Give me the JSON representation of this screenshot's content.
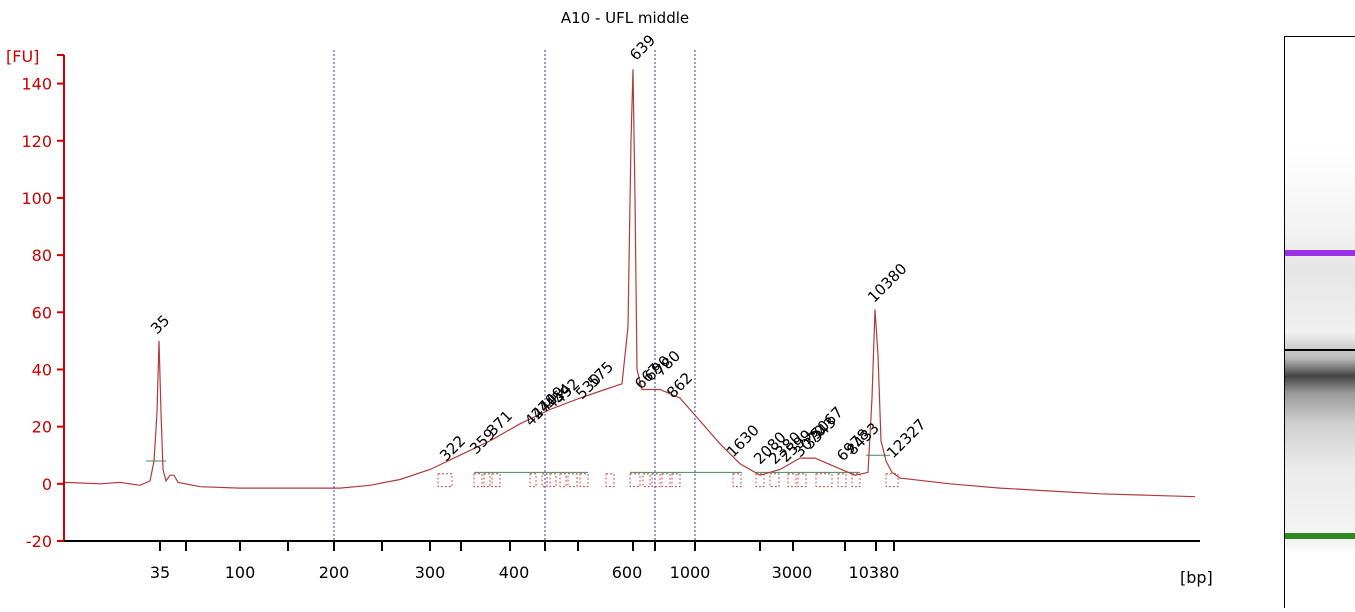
{
  "chart_data": {
    "type": "line",
    "title": "A10 - UFL middle",
    "ylabel": "[FU]",
    "xlabel": "[bp]",
    "ylim": [
      -20,
      150
    ],
    "yticks": [
      -20,
      0,
      20,
      40,
      60,
      80,
      100,
      120,
      140
    ],
    "xticks": [
      "35",
      "100",
      "200",
      "300",
      "400",
      "600",
      "1000",
      "3000",
      "10380"
    ],
    "colors": {
      "trace": "#b33a3a",
      "axis": "#cc0000",
      "lower_marker": "#2e8b22",
      "upper_marker": "#9b30e6",
      "region": "#cc2222",
      "baseline": "#3b8a5a",
      "gridline": "#3333cc"
    },
    "markers": {
      "lower": {
        "size_bp": 35,
        "label": "35",
        "fu": 50
      },
      "upper": {
        "size_bp": 10380,
        "label": "10380",
        "fu": 61
      }
    },
    "main_peak": {
      "size_bp": 639,
      "label": "639",
      "fu": 145
    },
    "peak_labels": [
      "322",
      "359",
      "371",
      "427",
      "440",
      "449",
      "454",
      "492",
      "530",
      "575",
      "667",
      "690",
      "780",
      "862",
      "1630",
      "2080",
      "2380",
      "2599",
      "3070",
      "3343",
      "5067",
      "6978",
      "8433",
      "12327"
    ],
    "vertical_gridlines_bp": [
      200,
      450,
      760,
      1000
    ],
    "trace_points": [
      [
        65,
        0.5
      ],
      [
        100,
        0
      ],
      [
        120,
        0.5
      ],
      [
        140,
        -0.5
      ],
      [
        150,
        1
      ],
      [
        154,
        8
      ],
      [
        157,
        25
      ],
      [
        159,
        50
      ],
      [
        161,
        25
      ],
      [
        163,
        5
      ],
      [
        166,
        1
      ],
      [
        170,
        3
      ],
      [
        174,
        3
      ],
      [
        178,
        0.5
      ],
      [
        200,
        -1
      ],
      [
        240,
        -1.5
      ],
      [
        300,
        -1.5
      ],
      [
        340,
        -1.5
      ],
      [
        370,
        -0.5
      ],
      [
        400,
        1.5
      ],
      [
        430,
        5
      ],
      [
        460,
        10
      ],
      [
        490,
        15
      ],
      [
        520,
        21
      ],
      [
        550,
        26
      ],
      [
        580,
        30
      ],
      [
        605,
        33
      ],
      [
        622,
        35
      ],
      [
        628,
        55
      ],
      [
        631,
        120
      ],
      [
        633,
        145
      ],
      [
        635,
        100
      ],
      [
        637,
        40
      ],
      [
        642,
        33
      ],
      [
        660,
        33
      ],
      [
        680,
        30
      ],
      [
        700,
        22
      ],
      [
        720,
        14
      ],
      [
        740,
        7
      ],
      [
        760,
        3
      ],
      [
        780,
        5
      ],
      [
        800,
        9
      ],
      [
        815,
        9
      ],
      [
        835,
        6
      ],
      [
        855,
        3
      ],
      [
        868,
        4
      ],
      [
        872,
        30
      ],
      [
        875,
        61
      ],
      [
        878,
        45
      ],
      [
        881,
        15
      ],
      [
        886,
        8
      ],
      [
        892,
        4
      ],
      [
        900,
        2
      ],
      [
        950,
        0
      ],
      [
        1000,
        -1.5
      ],
      [
        1050,
        -2.5
      ],
      [
        1100,
        -3.5
      ],
      [
        1150,
        -4
      ],
      [
        1195,
        -4.5
      ]
    ]
  }
}
